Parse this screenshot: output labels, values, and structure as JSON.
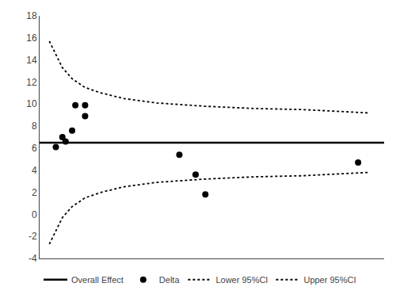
{
  "chart_data": {
    "type": "scatter",
    "xlim": [
      -0.01,
      1.05
    ],
    "ylim": [
      -4,
      18
    ],
    "yticks": [
      -4,
      -2,
      0,
      2,
      4,
      6,
      8,
      10,
      12,
      14,
      16,
      18
    ],
    "tick_labels": "y",
    "grid": false,
    "legend": "lower left",
    "series": [
      {
        "name": "Overall Effect",
        "type": "hline",
        "color": "#000000",
        "line_style": "solid",
        "values": [
          6.5
        ]
      },
      {
        "name": "Delta",
        "type": "scatter",
        "color": "#000000",
        "marker": "circle",
        "x": [
          0.04,
          0.06,
          0.07,
          0.09,
          0.1,
          0.13,
          0.13,
          0.42,
          0.47,
          0.5,
          0.97
        ],
        "values": [
          6.1,
          7.0,
          6.6,
          7.6,
          9.9,
          9.9,
          8.9,
          5.4,
          3.6,
          1.8,
          4.7
        ]
      },
      {
        "name": "Lower 95%CI",
        "type": "line",
        "color": "#000000",
        "line_style": "dotted",
        "x": [
          0.02,
          0.04,
          0.06,
          0.09,
          0.13,
          0.18,
          0.25,
          0.35,
          0.5,
          0.65,
          0.8,
          1.0
        ],
        "values": [
          -2.7,
          -1.5,
          -0.3,
          0.7,
          1.5,
          2.0,
          2.5,
          2.9,
          3.2,
          3.4,
          3.5,
          3.8
        ]
      },
      {
        "name": "Upper 95%CI",
        "type": "line",
        "color": "#000000",
        "line_style": "dotted",
        "x": [
          0.02,
          0.04,
          0.06,
          0.09,
          0.13,
          0.18,
          0.25,
          0.35,
          0.5,
          0.65,
          0.8,
          1.0
        ],
        "values": [
          15.7,
          14.5,
          13.3,
          12.3,
          11.5,
          11.0,
          10.5,
          10.1,
          9.8,
          9.6,
          9.5,
          9.2
        ]
      }
    ]
  }
}
